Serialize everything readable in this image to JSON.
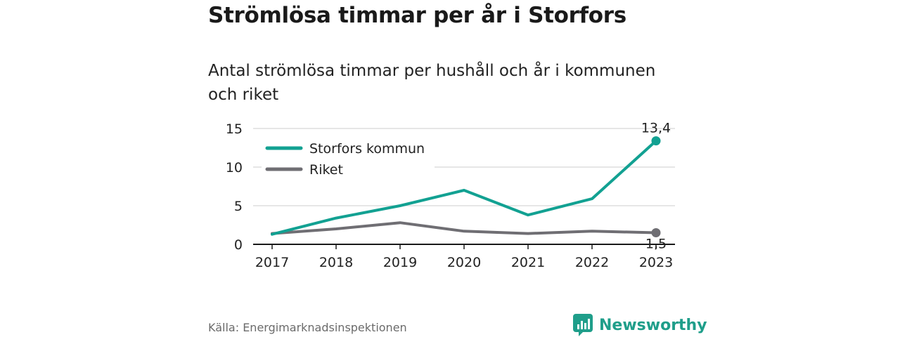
{
  "header": {
    "title": "Strömlösa timmar per år i Storfors",
    "subtitle": "Antal strömlösa timmar per hushåll och år i kommunen och riket"
  },
  "chart_data": {
    "type": "line",
    "x": [
      "2017",
      "2018",
      "2019",
      "2020",
      "2021",
      "2022",
      "2023"
    ],
    "series": [
      {
        "name": "Storfors kommun",
        "color": "#12a192",
        "values": [
          1.3,
          3.4,
          5.0,
          7.0,
          3.8,
          5.9,
          13.4
        ]
      },
      {
        "name": "Riket",
        "color": "#6f6e73",
        "values": [
          1.4,
          2.0,
          2.8,
          1.7,
          1.4,
          1.7,
          1.5
        ]
      }
    ],
    "yticks": [
      0,
      5,
      10,
      15
    ],
    "ylim": [
      0,
      15
    ],
    "end_labels": [
      "13,4",
      "1,5"
    ],
    "grid": true,
    "legend_position": "top-left"
  },
  "footer": {
    "source": "Källa: Energimarknadsinspektionen",
    "brand": "Newsworthy"
  }
}
